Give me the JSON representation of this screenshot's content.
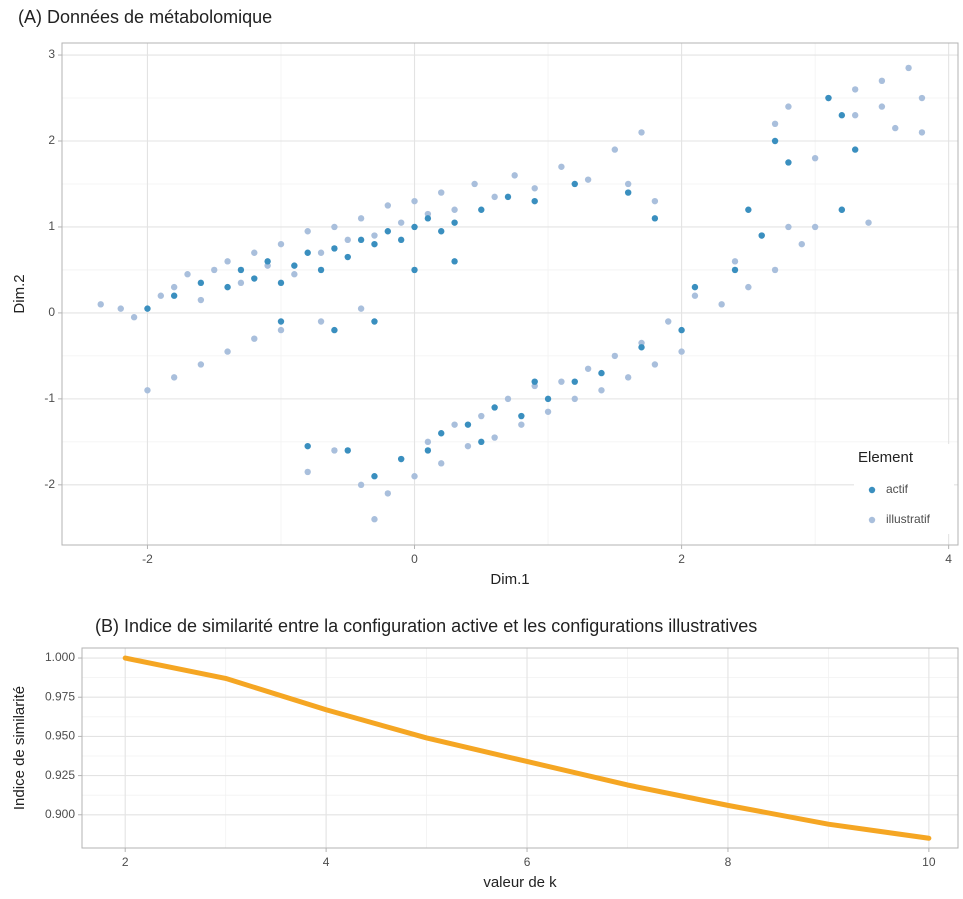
{
  "chart_data": [
    {
      "type": "scatter",
      "title": "(A) Données de métabolomique",
      "x_label": "Dim.1",
      "y_label": "Dim.2",
      "xlim": [
        -2.64,
        4.07
      ],
      "xticks": [
        -2,
        0,
        2,
        4
      ],
      "ylim": [
        -2.7,
        3.14
      ],
      "yticks": [
        -2,
        -1,
        0,
        1,
        2,
        3
      ],
      "grid": true,
      "minor_grid": true,
      "legend_title": "Element",
      "legend_position": "bottom-right",
      "series": [
        {
          "name": "actif",
          "color": "#3a8fbf",
          "x": [
            -2.0,
            -1.8,
            -1.6,
            -1.4,
            -1.3,
            -1.2,
            -1.1,
            -1.0,
            -0.9,
            -0.8,
            -0.7,
            -0.6,
            -0.5,
            -0.4,
            -0.3,
            -0.2,
            -0.1,
            0.0,
            0.1,
            0.2,
            0.3,
            0.5,
            0.7,
            0.9,
            1.2,
            -1.0,
            -0.6,
            -0.3,
            0.0,
            0.3,
            -0.8,
            -0.5,
            -0.3,
            -0.1,
            0.1,
            0.2,
            0.4,
            0.5,
            0.6,
            0.8,
            0.9,
            1.0,
            1.2,
            1.4,
            1.7,
            2.0,
            2.1,
            2.4,
            2.6,
            2.8,
            3.2,
            3.3,
            3.1,
            2.7,
            3.2,
            2.5,
            1.6,
            1.8
          ],
          "values": [
            0.05,
            0.2,
            0.35,
            0.3,
            0.5,
            0.4,
            0.6,
            0.35,
            0.55,
            0.7,
            0.5,
            0.75,
            0.65,
            0.85,
            0.8,
            0.95,
            0.85,
            1.0,
            1.1,
            0.95,
            1.05,
            1.2,
            1.35,
            1.3,
            1.5,
            -0.1,
            -0.2,
            -0.1,
            0.5,
            0.6,
            -1.55,
            -1.6,
            -1.9,
            -1.7,
            -1.6,
            -1.4,
            -1.3,
            -1.5,
            -1.1,
            -1.2,
            -0.8,
            -1.0,
            -0.8,
            -0.7,
            -0.4,
            -0.2,
            0.3,
            0.5,
            0.9,
            1.75,
            2.3,
            1.9,
            2.5,
            2.0,
            1.2,
            1.2,
            1.4,
            1.1
          ]
        },
        {
          "name": "illustratif",
          "color": "#a9bfdc",
          "x": [
            -2.35,
            -2.2,
            -2.1,
            -1.9,
            -1.8,
            -1.7,
            -1.6,
            -1.5,
            -1.4,
            -1.3,
            -1.2,
            -1.1,
            -1.0,
            -0.9,
            -0.8,
            -0.7,
            -0.6,
            -0.5,
            -0.4,
            -0.3,
            -0.2,
            -0.1,
            0.0,
            0.1,
            0.2,
            0.3,
            0.45,
            0.6,
            0.75,
            0.9,
            1.1,
            1.3,
            1.5,
            1.7,
            1.6,
            1.8,
            -2.0,
            -1.8,
            -1.6,
            -1.4,
            -1.2,
            -1.0,
            -0.7,
            -0.4,
            -0.8,
            -0.6,
            -0.4,
            -0.3,
            -0.2,
            -0.1,
            0.0,
            0.1,
            0.2,
            0.3,
            0.4,
            0.5,
            0.6,
            0.7,
            0.8,
            0.9,
            1.0,
            1.1,
            1.2,
            1.3,
            1.4,
            1.5,
            1.6,
            1.7,
            1.8,
            1.9,
            2.0,
            2.1,
            2.3,
            2.4,
            2.5,
            2.6,
            2.7,
            2.8,
            2.9,
            3.0,
            3.2,
            3.4,
            2.7,
            2.8,
            3.1,
            3.3,
            3.5,
            3.7,
            3.5,
            3.8,
            3.6,
            3.8,
            3.3,
            3.0
          ],
          "values": [
            0.1,
            0.05,
            -0.05,
            0.2,
            0.3,
            0.45,
            0.15,
            0.5,
            0.6,
            0.35,
            0.7,
            0.55,
            0.8,
            0.45,
            0.95,
            0.7,
            1.0,
            0.85,
            1.1,
            0.9,
            1.25,
            1.05,
            1.3,
            1.15,
            1.4,
            1.2,
            1.5,
            1.35,
            1.6,
            1.45,
            1.7,
            1.55,
            1.9,
            2.1,
            1.5,
            1.3,
            -0.9,
            -0.75,
            -0.6,
            -0.45,
            -0.3,
            -0.2,
            -0.1,
            0.05,
            -1.85,
            -1.6,
            -2.0,
            -2.4,
            -2.1,
            -1.7,
            -1.9,
            -1.5,
            -1.75,
            -1.3,
            -1.55,
            -1.2,
            -1.45,
            -1.0,
            -1.3,
            -0.85,
            -1.15,
            -0.8,
            -1.0,
            -0.65,
            -0.9,
            -0.5,
            -0.75,
            -0.35,
            -0.6,
            -0.1,
            -0.45,
            0.2,
            0.1,
            0.6,
            0.3,
            0.9,
            0.5,
            1.0,
            0.8,
            1.0,
            1.2,
            1.05,
            2.2,
            2.4,
            2.5,
            2.6,
            2.7,
            2.85,
            2.4,
            2.5,
            2.15,
            2.1,
            2.3,
            1.8
          ]
        }
      ]
    },
    {
      "type": "line",
      "title": "(B) Indice de similarité entre la configuration active et les configurations illustratives",
      "x_label": "valeur de k",
      "y_label": "Indice de similarité",
      "color": "#f5a623",
      "x": [
        2,
        3,
        4,
        5,
        6,
        7,
        8,
        9,
        10
      ],
      "values": [
        1.0,
        0.987,
        0.967,
        0.949,
        0.934,
        0.919,
        0.906,
        0.894,
        0.885
      ],
      "xlim": [
        1.57,
        10.29
      ],
      "xticks": [
        2,
        4,
        6,
        8,
        10
      ],
      "ylim": [
        0.8788,
        1.0064
      ],
      "yticks": [
        {
          "value": 0.9,
          "label": "0.900"
        },
        0.925,
        {
          "value": 0.95,
          "label": "0.950"
        },
        0.975,
        {
          "value": 1.0,
          "label": "1.000"
        }
      ],
      "grid": true,
      "minor_grid": true
    }
  ]
}
